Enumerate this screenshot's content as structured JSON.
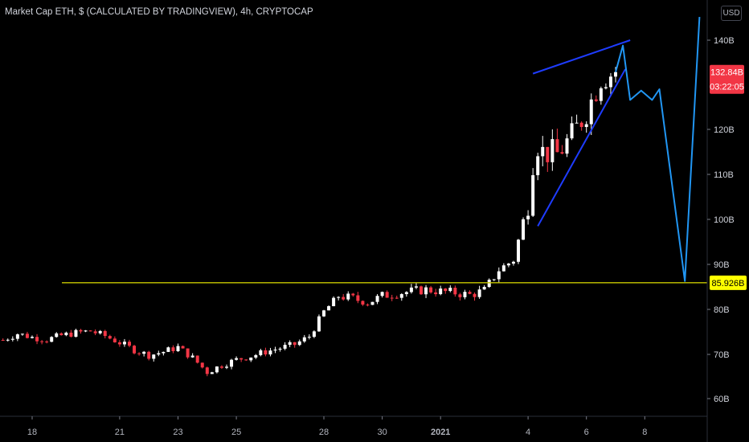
{
  "header": {
    "title": "Market Cap ETH, $ (CALCULATED BY TRADINGVIEW), 4h, CRYPTOCAP",
    "currency_button": "USD"
  },
  "colors": {
    "background": "#000000",
    "up": "#ffffff",
    "down": "#f23645",
    "support_line": "#c8c800",
    "wedge": "#1e3cff",
    "projection": "#2196f3",
    "price_tag": "#f23645",
    "support_tag": "#ffff00"
  },
  "tags": {
    "price": "132.84B",
    "countdown": "03:22:05",
    "support": "85.926B"
  },
  "chart_data": {
    "type": "candlestick",
    "title": "Market Cap ETH, $ (CALCULATED BY TRADINGVIEW), 4h, CRYPTOCAP",
    "y_unit": "B",
    "y_ticks": [
      "140B",
      "120B",
      "110B",
      "100B",
      "90B",
      "80B",
      "70B",
      "60B"
    ],
    "ylim": [
      56,
      146
    ],
    "x_ticks": [
      "18",
      "21",
      "23",
      "25",
      "28",
      "30",
      "2021",
      "4",
      "6",
      "8"
    ],
    "last_price": 132.84,
    "support_level": 85.926,
    "close_path": [
      {
        "date": "Dec 17 00:00",
        "value": 73.2
      },
      {
        "date": "Dec 17 12:00",
        "value": 74.6
      },
      {
        "date": "Dec 18 00:00",
        "value": 73.8
      },
      {
        "date": "Dec 18 12:00",
        "value": 73.3
      },
      {
        "date": "Dec 19 00:00",
        "value": 74.2
      },
      {
        "date": "Dec 19 12:00",
        "value": 74.8
      },
      {
        "date": "Dec 20 00:00",
        "value": 75.2
      },
      {
        "date": "Dec 20 12:00",
        "value": 74.1
      },
      {
        "date": "Dec 21 00:00",
        "value": 72.6
      },
      {
        "date": "Dec 21 12:00",
        "value": 71.0
      },
      {
        "date": "Dec 22 00:00",
        "value": 69.8
      },
      {
        "date": "Dec 22 12:00",
        "value": 70.6
      },
      {
        "date": "Dec 23 00:00",
        "value": 71.6
      },
      {
        "date": "Dec 23 12:00",
        "value": 69.2
      },
      {
        "date": "Dec 24 00:00",
        "value": 66.0
      },
      {
        "date": "Dec 24 12:00",
        "value": 67.6
      },
      {
        "date": "Dec 25 00:00",
        "value": 68.8
      },
      {
        "date": "Dec 25 12:00",
        "value": 69.6
      },
      {
        "date": "Dec 26 00:00",
        "value": 70.6
      },
      {
        "date": "Dec 26 12:00",
        "value": 71.4
      },
      {
        "date": "Dec 27 00:00",
        "value": 72.2
      },
      {
        "date": "Dec 27 12:00",
        "value": 74.0
      },
      {
        "date": "Dec 28 00:00",
        "value": 79.5
      },
      {
        "date": "Dec 28 12:00",
        "value": 83.0
      },
      {
        "date": "Dec 29 00:00",
        "value": 82.4
      },
      {
        "date": "Dec 29 12:00",
        "value": 81.4
      },
      {
        "date": "Dec 30 00:00",
        "value": 83.0
      },
      {
        "date": "Dec 30 12:00",
        "value": 83.6
      },
      {
        "date": "Dec 31 00:00",
        "value": 84.0
      },
      {
        "date": "Dec 31 12:00",
        "value": 84.4
      },
      {
        "date": "Jan 1 00:00",
        "value": 84.0
      },
      {
        "date": "Jan 1 12:00",
        "value": 83.7
      },
      {
        "date": "Jan 2 00:00",
        "value": 83.2
      },
      {
        "date": "Jan 2 12:00",
        "value": 84.2
      },
      {
        "date": "Jan 3 00:00",
        "value": 88.8
      },
      {
        "date": "Jan 3 12:00",
        "value": 91.0
      },
      {
        "date": "Jan 4 00:00",
        "value": 104.0
      },
      {
        "date": "Jan 4 06:00",
        "value": 117.5
      },
      {
        "date": "Jan 4 12:00",
        "value": 115.0
      },
      {
        "date": "Jan 5 00:00",
        "value": 114.5
      },
      {
        "date": "Jan 5 12:00",
        "value": 118.5
      },
      {
        "date": "Jan 6 00:00",
        "value": 124.0
      },
      {
        "date": "Jan 6 12:00",
        "value": 131.5
      },
      {
        "date": "Jan 7 00:00",
        "value": 132.84
      }
    ],
    "wedge_lines": [
      {
        "name": "upper",
        "from": {
          "date": "Jan 4 04:00",
          "value": 132.5
        },
        "to": {
          "date": "Jan 7 12:00",
          "value": 140.0
        }
      },
      {
        "name": "lower",
        "from": {
          "date": "Jan 4 08:00",
          "value": 98.5
        },
        "to": {
          "date": "Jan 7 08:00",
          "value": 133.5
        }
      }
    ],
    "projection_path": [
      {
        "date": "Jan 7 00:00",
        "value": 132.84
      },
      {
        "date": "Jan 7 06:00",
        "value": 138.8
      },
      {
        "date": "Jan 7 12:00",
        "value": 126.6
      },
      {
        "date": "Jan 7 21:00",
        "value": 128.7
      },
      {
        "date": "Jan 8 06:00",
        "value": 126.6
      },
      {
        "date": "Jan 8 12:00",
        "value": 129.0
      },
      {
        "date": "Jan 9 09:00",
        "value": 86.3
      },
      {
        "date": "Jan 9 21:00",
        "value": 145.2
      }
    ],
    "grid": false,
    "legend": "none"
  }
}
